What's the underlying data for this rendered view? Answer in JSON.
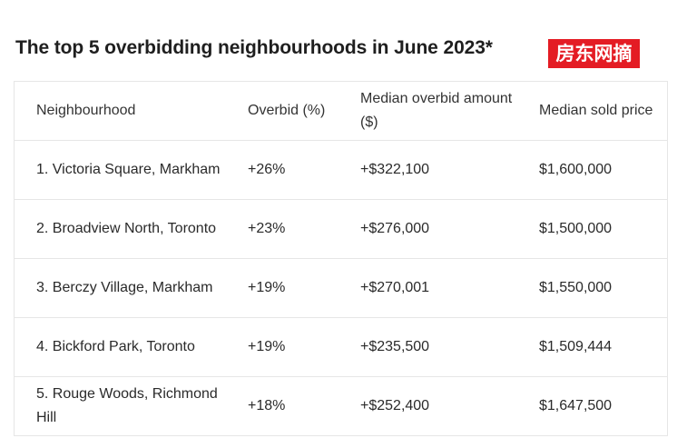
{
  "title": "The top 5 overbidding neighbourhoods in June 2023*",
  "watermark": "房东网摘",
  "accent_color": "#e41c24",
  "table": {
    "headers": [
      "Neighbourhood",
      "Overbid (%)",
      "Median overbid amount ($)",
      "Median sold price"
    ],
    "rows": [
      [
        "1. Victoria Square, Markham",
        "+26%",
        "+$322,100",
        "$1,600,000"
      ],
      [
        "2. Broadview North, Toronto",
        "+23%",
        "+$276,000",
        "$1,500,000"
      ],
      [
        "3. Berczy Village, Markham",
        "+19%",
        "+$270,001",
        "$1,550,000"
      ],
      [
        "4. Bickford Park, Toronto",
        "+19%",
        "+$235,500",
        "$1,509,444"
      ],
      [
        "5. Rouge Woods, Richmond Hill",
        "+18%",
        "+$252,400",
        "$1,647,500"
      ]
    ]
  }
}
